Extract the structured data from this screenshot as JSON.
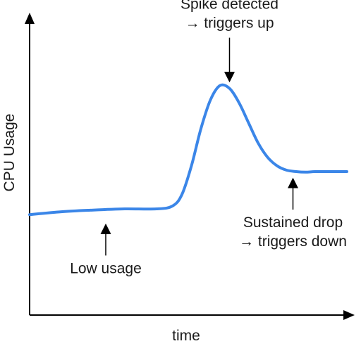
{
  "chart_data": {
    "type": "line",
    "xlabel": "time",
    "ylabel": "CPU Usage",
    "xlim": [
      0,
      100
    ],
    "ylim": [
      0,
      100
    ],
    "grid": false,
    "series": [
      {
        "color": "#3b86e8",
        "x": [
          0,
          10,
          20,
          30,
          40,
          45,
          48,
          51,
          54,
          57,
          60,
          63,
          66,
          69,
          72,
          75,
          78,
          81,
          84,
          87,
          90,
          95,
          100
        ],
        "y": [
          35,
          36,
          36.6,
          37,
          37,
          38,
          42,
          52,
          65,
          75,
          80,
          79,
          74,
          67,
          60,
          55,
          52,
          50.5,
          50,
          49.8,
          50,
          50,
          50
        ]
      }
    ],
    "annotations": [
      {
        "lines": [
          "Spike detected",
          "→ triggers up"
        ],
        "x": 63,
        "y": 80,
        "dir": "down"
      },
      {
        "lines": [
          "Sustained drop",
          "→ triggers down"
        ],
        "x": 83,
        "y": 49,
        "dir": "up"
      },
      {
        "lines": [
          "Low usage"
        ],
        "x": 24,
        "y": 33,
        "dir": "up"
      }
    ]
  }
}
